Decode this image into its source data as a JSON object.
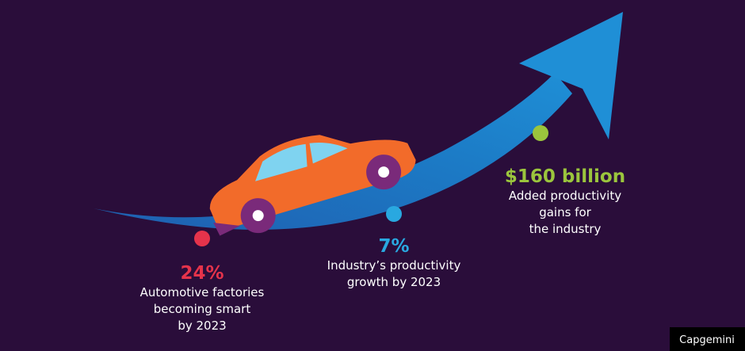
{
  "stats": [
    {
      "value": "24%",
      "lines": [
        "Automotive factories",
        "becoming smart",
        "by 2023"
      ]
    },
    {
      "value": "7%",
      "lines": [
        "Industry’s productivity",
        "growth by 2023"
      ]
    },
    {
      "value": "$160 billion",
      "lines": [
        "Added productivity",
        "gains for",
        "the industry"
      ]
    }
  ],
  "brand": "Capgemini"
}
